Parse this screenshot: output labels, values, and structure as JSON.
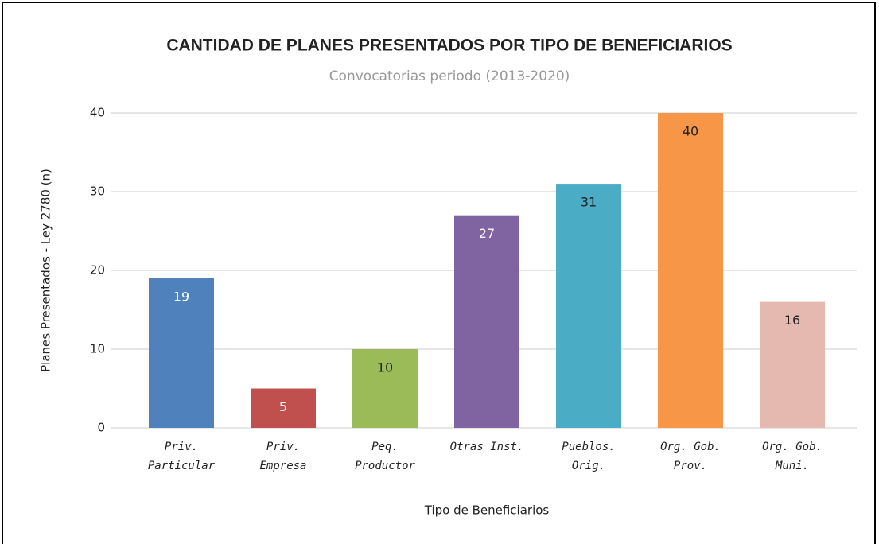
{
  "chart_data": {
    "type": "bar",
    "title": "CANTIDAD DE PLANES PRESENTADOS POR TIPO DE BENEFICIARIOS",
    "subtitle": "Convocatorias periodo (2013-2020)",
    "x_label": "Tipo de Beneficiarios",
    "y_label": "Planes Presentados - Ley 2780 (n)",
    "categories": [
      [
        "Priv.",
        "Particular"
      ],
      [
        "Priv.",
        "Empresa"
      ],
      [
        "Peq.",
        "Productor"
      ],
      [
        "Otras Inst."
      ],
      [
        "Pueblos.",
        "Orig."
      ],
      [
        "Org. Gob.",
        "Prov."
      ],
      [
        "Org. Gob.",
        "Muni."
      ]
    ],
    "values": [
      19,
      5,
      10,
      27,
      31,
      40,
      16
    ],
    "colors": [
      "#4f81bd",
      "#c0504d",
      "#9bbb59",
      "#8064a2",
      "#4bacc6",
      "#f79646",
      "#e6b9b0"
    ],
    "label_colors": [
      "#ffffff",
      "#ffffff",
      "#222222",
      "#ffffff",
      "#222222",
      "#222222",
      "#222222"
    ],
    "ylim": [
      0,
      40
    ],
    "yticks": [
      0,
      10,
      20,
      30,
      40
    ],
    "grid": true
  }
}
